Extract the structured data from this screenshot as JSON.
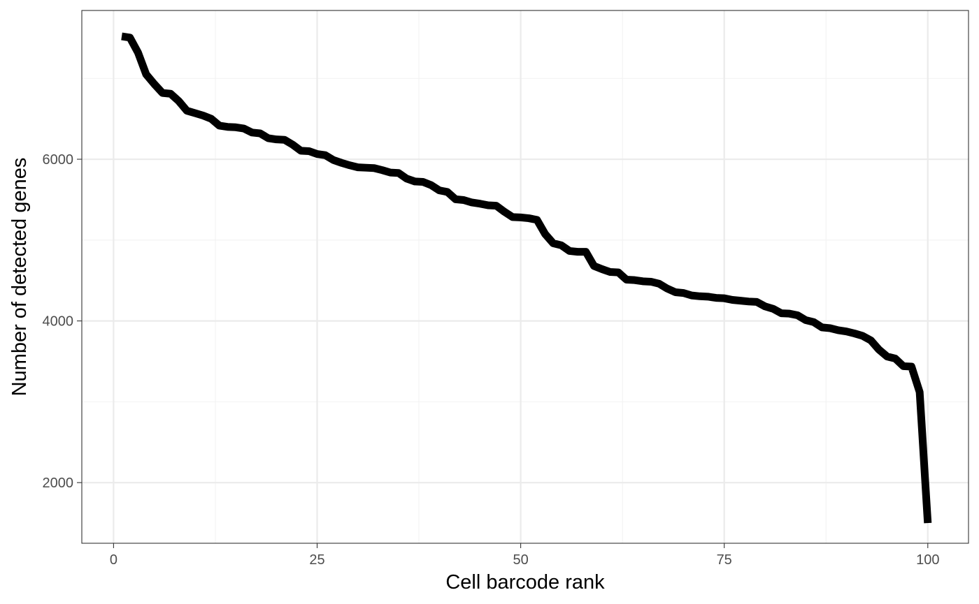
{
  "chart_data": {
    "type": "line",
    "title": "",
    "xlabel": "Cell barcode rank",
    "ylabel": "Number of detected genes",
    "xlim": [
      -3.9,
      105
    ],
    "ylim": [
      1250,
      7840
    ],
    "x_ticks": [
      0,
      25,
      50,
      75,
      100
    ],
    "x_tick_labels": [
      "0",
      "25",
      "50",
      "75",
      "100"
    ],
    "y_ticks": [
      2000,
      4000,
      6000
    ],
    "y_tick_labels": [
      "2000",
      "4000",
      "6000"
    ],
    "x_minor_ticks": [
      12.5,
      37.5,
      62.5,
      87.5
    ],
    "y_minor_ticks": [
      3000,
      5000,
      7000
    ],
    "grid": true,
    "legend": "none",
    "colors": {
      "line": "#000000",
      "panel_border": "#333333",
      "major_grid": "#ebebeb",
      "minor_grid": "#f2f2f2",
      "background": "#ffffff"
    },
    "x": [
      1,
      2,
      3,
      4,
      5,
      6,
      7,
      8,
      9,
      10,
      11,
      12,
      13,
      14,
      15,
      16,
      17,
      18,
      19,
      20,
      21,
      22,
      23,
      24,
      25,
      26,
      27,
      28,
      29,
      30,
      31,
      32,
      33,
      34,
      35,
      36,
      37,
      38,
      39,
      40,
      41,
      42,
      43,
      44,
      45,
      46,
      47,
      48,
      49,
      50,
      51,
      52,
      53,
      54,
      55,
      56,
      57,
      58,
      59,
      60,
      61,
      62,
      63,
      64,
      65,
      66,
      67,
      68,
      69,
      70,
      71,
      72,
      73,
      74,
      75,
      76,
      77,
      78,
      79,
      80,
      81,
      82,
      83,
      84,
      85,
      86,
      87,
      88,
      89,
      90,
      91,
      92,
      93,
      94,
      95,
      96,
      97,
      98,
      99,
      100
    ],
    "series": [
      {
        "values": [
          7520,
          7505,
          7320,
          7050,
          6930,
          6820,
          6810,
          6720,
          6600,
          6570,
          6540,
          6500,
          6415,
          6400,
          6395,
          6380,
          6330,
          6320,
          6260,
          6245,
          6240,
          6180,
          6105,
          6100,
          6065,
          6050,
          5990,
          5955,
          5925,
          5900,
          5895,
          5890,
          5865,
          5835,
          5830,
          5760,
          5725,
          5720,
          5680,
          5615,
          5595,
          5505,
          5495,
          5465,
          5450,
          5430,
          5425,
          5350,
          5285,
          5280,
          5270,
          5250,
          5075,
          4960,
          4935,
          4865,
          4855,
          4855,
          4680,
          4640,
          4605,
          4600,
          4510,
          4505,
          4490,
          4485,
          4460,
          4400,
          4355,
          4345,
          4315,
          4305,
          4300,
          4285,
          4280,
          4260,
          4250,
          4240,
          4235,
          4180,
          4150,
          4095,
          4090,
          4070,
          4010,
          3985,
          3920,
          3910,
          3885,
          3870,
          3845,
          3815,
          3760,
          3645,
          3560,
          3535,
          3440,
          3435,
          3120,
          1500
        ]
      }
    ]
  }
}
